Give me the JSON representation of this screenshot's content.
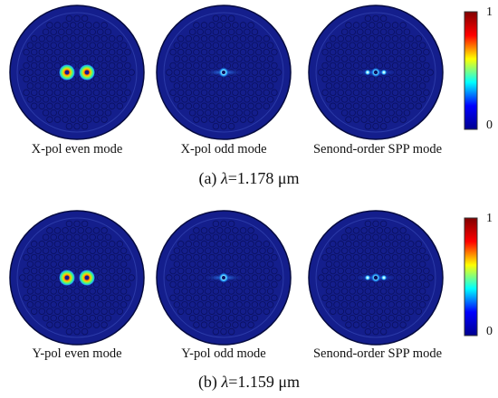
{
  "panels": [
    {
      "caption_letter": "(a)",
      "caption_symbol": "λ",
      "caption_value": "=1.178 μm",
      "modes": [
        {
          "label": "X-pol even mode",
          "field": "even"
        },
        {
          "label": "X-pol odd mode",
          "field": "odd"
        },
        {
          "label": "Senond-order SPP mode",
          "field": "second"
        }
      ],
      "colorbar": {
        "max_label": "1",
        "min_label": "0"
      }
    },
    {
      "caption_letter": "(b)",
      "caption_symbol": "λ",
      "caption_value": "=1.159 μm",
      "modes": [
        {
          "label": "Y-pol even mode",
          "field": "even"
        },
        {
          "label": "Y-pol odd mode",
          "field": "odd"
        },
        {
          "label": "Senond-order SPP mode",
          "field": "second"
        }
      ],
      "colorbar": {
        "max_label": "1",
        "min_label": "0"
      }
    }
  ],
  "colors": {
    "background_field": "#141e8c",
    "colormap": [
      "#00008f",
      "#0000ff",
      "#00ffff",
      "#ffff00",
      "#ff0000",
      "#800000"
    ]
  }
}
